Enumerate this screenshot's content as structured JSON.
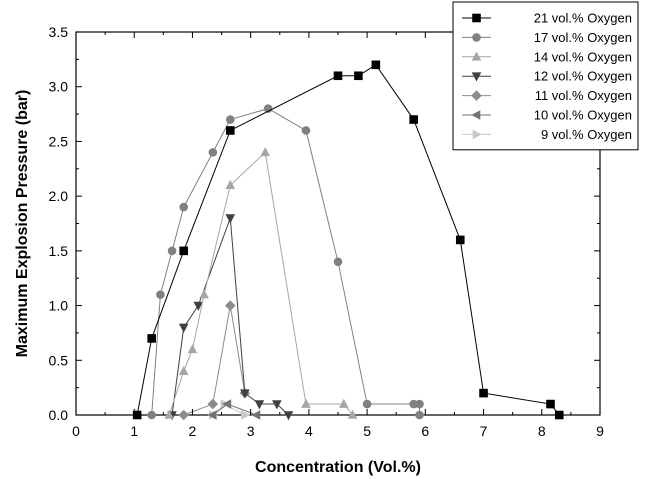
{
  "chart_data": {
    "type": "line",
    "title": "",
    "xlabel": "Concentration (Vol.%)",
    "ylabel": "Maximum Explosion Pressure (bar)",
    "xlim": [
      0,
      9
    ],
    "ylim": [
      0,
      3.5
    ],
    "x_ticks": [
      "0",
      "1",
      "2",
      "3",
      "4",
      "5",
      "6",
      "7",
      "8",
      "9"
    ],
    "y_ticks": [
      "0.0",
      "0.5",
      "1.0",
      "1.5",
      "2.0",
      "2.5",
      "3.0",
      "3.5"
    ],
    "grid": false,
    "legend_position": "top-right",
    "series": [
      {
        "name": "21 vol.% Oxygen",
        "color": "#000000",
        "marker": "square",
        "x": [
          1.05,
          1.3,
          1.85,
          2.65,
          4.5,
          4.85,
          5.15,
          5.8,
          6.6,
          7.0,
          8.15,
          8.3
        ],
        "y": [
          0.0,
          0.7,
          1.5,
          2.6,
          3.1,
          3.1,
          3.2,
          2.7,
          1.6,
          0.2,
          0.1,
          0.0
        ]
      },
      {
        "name": "17 vol.% Oxygen",
        "color": "#808080",
        "marker": "circle",
        "x": [
          1.3,
          1.45,
          1.65,
          1.85,
          2.35,
          2.65,
          3.3,
          3.95,
          4.5,
          5.0,
          5.8,
          5.9,
          5.9
        ],
        "y": [
          0.0,
          1.1,
          1.5,
          1.9,
          2.4,
          2.7,
          2.8,
          2.6,
          1.4,
          0.1,
          0.1,
          0.1,
          0.0
        ]
      },
      {
        "name": "14 vol.% Oxygen",
        "color": "#a6a6a6",
        "marker": "triangle-up",
        "x": [
          1.6,
          1.85,
          2.0,
          2.2,
          2.65,
          3.25,
          3.95,
          4.6,
          4.75
        ],
        "y": [
          0.0,
          0.4,
          0.6,
          1.1,
          2.1,
          2.4,
          0.1,
          0.1,
          0.0
        ]
      },
      {
        "name": "12 vol.% Oxygen",
        "color": "#404040",
        "marker": "triangle-down",
        "x": [
          1.65,
          1.85,
          2.1,
          2.65,
          2.9,
          3.15,
          3.45,
          3.65
        ],
        "y": [
          0.0,
          0.8,
          1.0,
          1.8,
          0.2,
          0.1,
          0.1,
          0.0
        ]
      },
      {
        "name": "11 vol.% Oxygen",
        "color": "#8c8c8c",
        "marker": "diamond",
        "x": [
          1.85,
          2.35,
          2.65,
          2.9
        ],
        "y": [
          0.0,
          0.1,
          1.0,
          0.2
        ]
      },
      {
        "name": "10 vol.% Oxygen",
        "color": "#737373",
        "marker": "triangle-left",
        "x": [
          2.35,
          2.6,
          3.1
        ],
        "y": [
          0.0,
          0.1,
          0.0
        ]
      },
      {
        "name": "9 vol.% Oxygen",
        "color": "#c8c8c8",
        "marker": "triangle-right",
        "x": [
          2.35,
          2.55,
          2.9
        ],
        "y": [
          0.0,
          0.1,
          0.0
        ]
      }
    ]
  }
}
